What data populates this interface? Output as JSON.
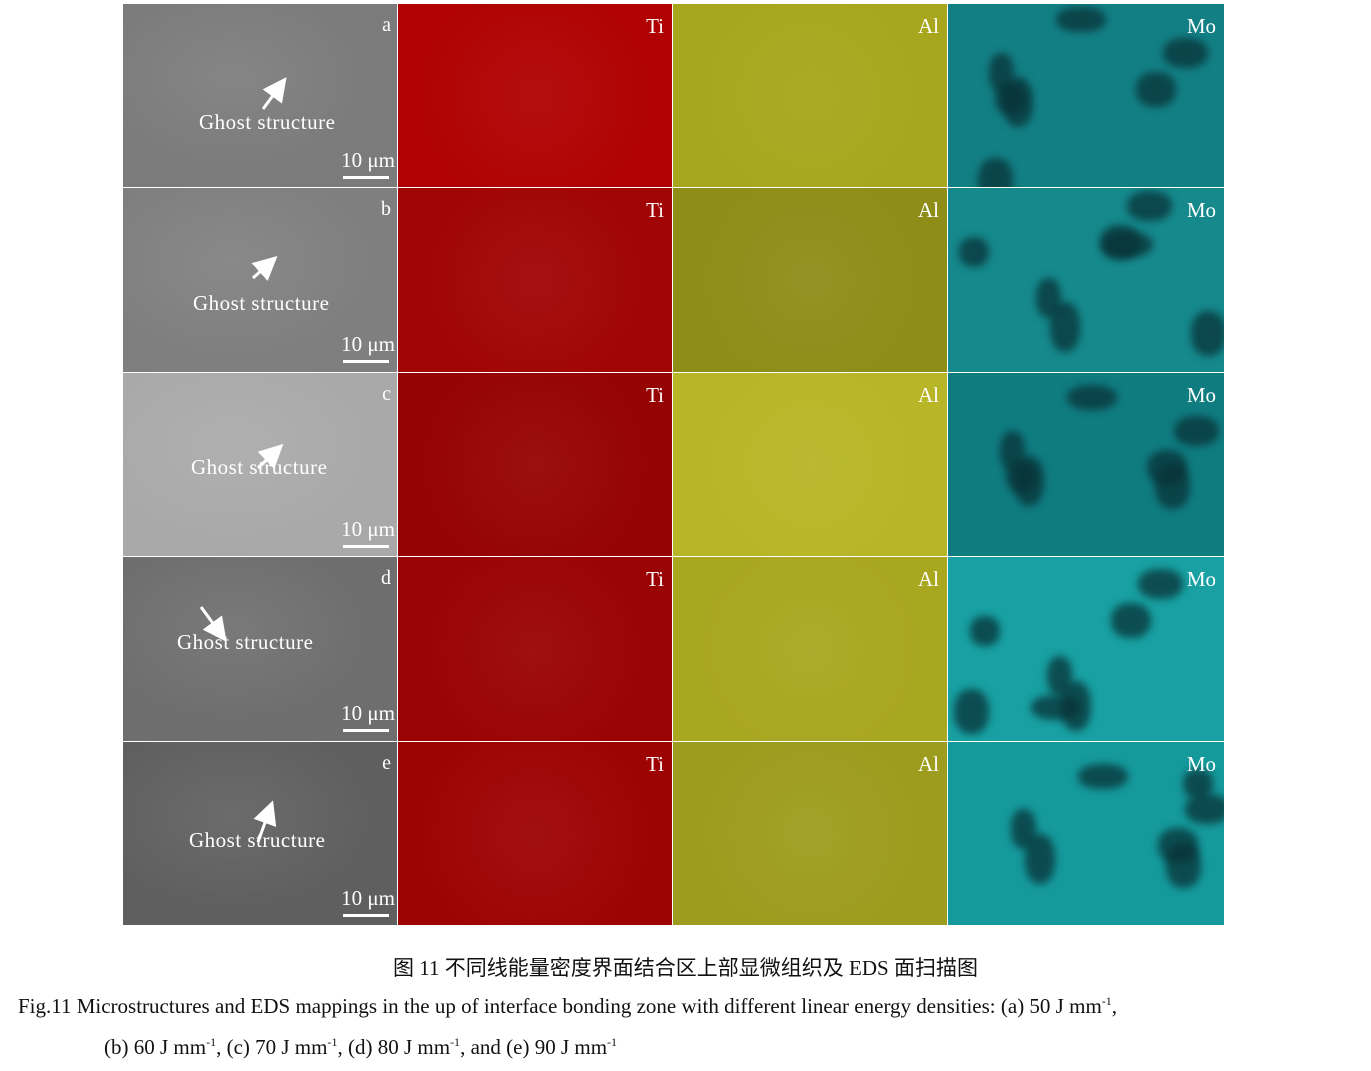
{
  "figure": {
    "rows": [
      {
        "id": "a",
        "sem_gray": "#7b7b7b",
        "ti": "#b00202",
        "al": "#a7a61c",
        "mo": "#127f84"
      },
      {
        "id": "b",
        "sem_gray": "#7f7f7f",
        "ti": "#a10404",
        "al": "#8e8d18",
        "mo": "#15898c"
      },
      {
        "id": "c",
        "sem_gray": "#a9a9a9",
        "ti": "#960303",
        "al": "#b8b526",
        "mo": "#0f7c80"
      },
      {
        "id": "d",
        "sem_gray": "#6e6e6e",
        "ti": "#9a0303",
        "al": "#a9a620",
        "mo": "#18a0a2"
      },
      {
        "id": "e",
        "sem_gray": "#5f5f5f",
        "ti": "#9e0303",
        "al": "#9d9c1e",
        "mo": "#15999b"
      }
    ],
    "element_labels": [
      "Ti",
      "Al",
      "Mo"
    ],
    "annotation": "Ghost structure",
    "scale_bar": "10 μm"
  },
  "caption": {
    "chinese": "图 11  不同线能量密度界面结合区上部显微组织及 EDS 面扫描图",
    "english_line1_prefix": "Fig.11  Microstructures and EDS mappings in the up of interface bonding zone with different linear energy densities: (a) 50 J mm",
    "english_line1_suffix": ",",
    "english_line2": [
      {
        "text": "(b) 60 J mm",
        "sup": "-1",
        "after": ", "
      },
      {
        "text": "(c) 70 J mm",
        "sup": "-1",
        "after": ", "
      },
      {
        "text": "(d) 80 J mm",
        "sup": "-1",
        "after": ", and "
      },
      {
        "text": "(e) 90 J mm",
        "sup": "-1",
        "after": ""
      }
    ],
    "unit_exponent": "-1"
  }
}
